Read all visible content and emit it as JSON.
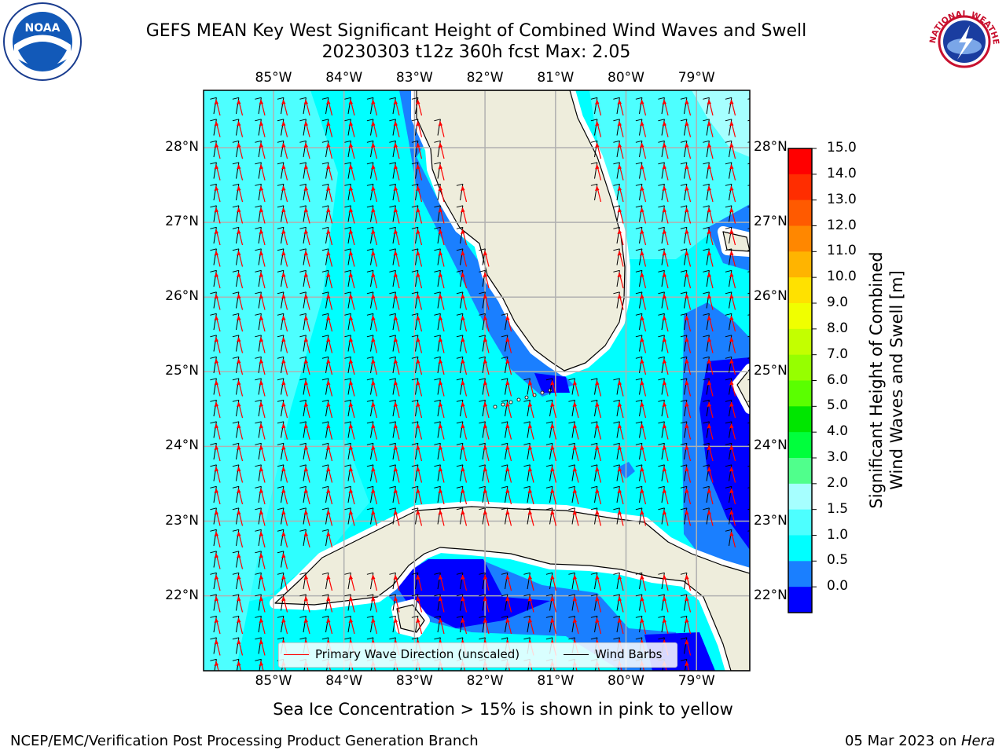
{
  "title": {
    "line1": "GEFS MEAN Key West Significant Height of Combined Wind Waves and Swell",
    "line2": "20230303 t12z 360h fcst   Max: 2.05"
  },
  "logos": {
    "left": {
      "icon": "noaa-logo",
      "text": "NOAA"
    },
    "right": {
      "icon": "nws-logo",
      "text": "NATIONAL WEATHER SERVICE"
    }
  },
  "map": {
    "lon_labels": [
      "85°W",
      "84°W",
      "83°W",
      "82°W",
      "81°W",
      "80°W",
      "79°W"
    ],
    "lat_labels": [
      "28°N",
      "27°N",
      "26°N",
      "25°N",
      "24°N",
      "23°N",
      "22°N"
    ],
    "colors": {
      "land": "#eeeddc",
      "wave_0_0p5": "#0000ff",
      "wave_0p5_1": "#1a7fff",
      "wave_1_1p5": "#00ffff",
      "wave_1p5_2": "#4dffff",
      "wave_2_3": "#a6ffff",
      "arrow": "#ff0000",
      "barb": "#000000",
      "grid": "#b0b0b0"
    }
  },
  "legend": {
    "wave_direction": "Primary Wave Direction (unscaled)",
    "wind_barbs": "Wind Barbs"
  },
  "colorbar": {
    "label_line1": "Significant Height of Combined",
    "label_line2": "Wind Waves and Swell [m]",
    "ticks": [
      "15.0",
      "14.0",
      "13.0",
      "12.0",
      "11.0",
      "10.0",
      "9.0",
      "8.0",
      "7.0",
      "6.0",
      "5.0",
      "4.0",
      "3.0",
      "2.0",
      "1.5",
      "1.0",
      "0.5",
      "0.0"
    ],
    "colors": [
      "#ff0000",
      "#ff2d00",
      "#ff5a00",
      "#ff8700",
      "#ffb400",
      "#ffe100",
      "#f0ff00",
      "#c3ff00",
      "#96ff00",
      "#5aff00",
      "#00e600",
      "#00ff3c",
      "#50ff8c",
      "#a6ffff",
      "#4dffff",
      "#00ffff",
      "#1a7fff",
      "#0000ff"
    ]
  },
  "caption": "Sea Ice Concentration > 15% is shown in pink to yellow",
  "footer": {
    "left": "NCEP/EMC/Verification Post Processing Product Generation Branch",
    "right_prefix": "05 Mar 2023 on ",
    "right_host": "Hera"
  }
}
